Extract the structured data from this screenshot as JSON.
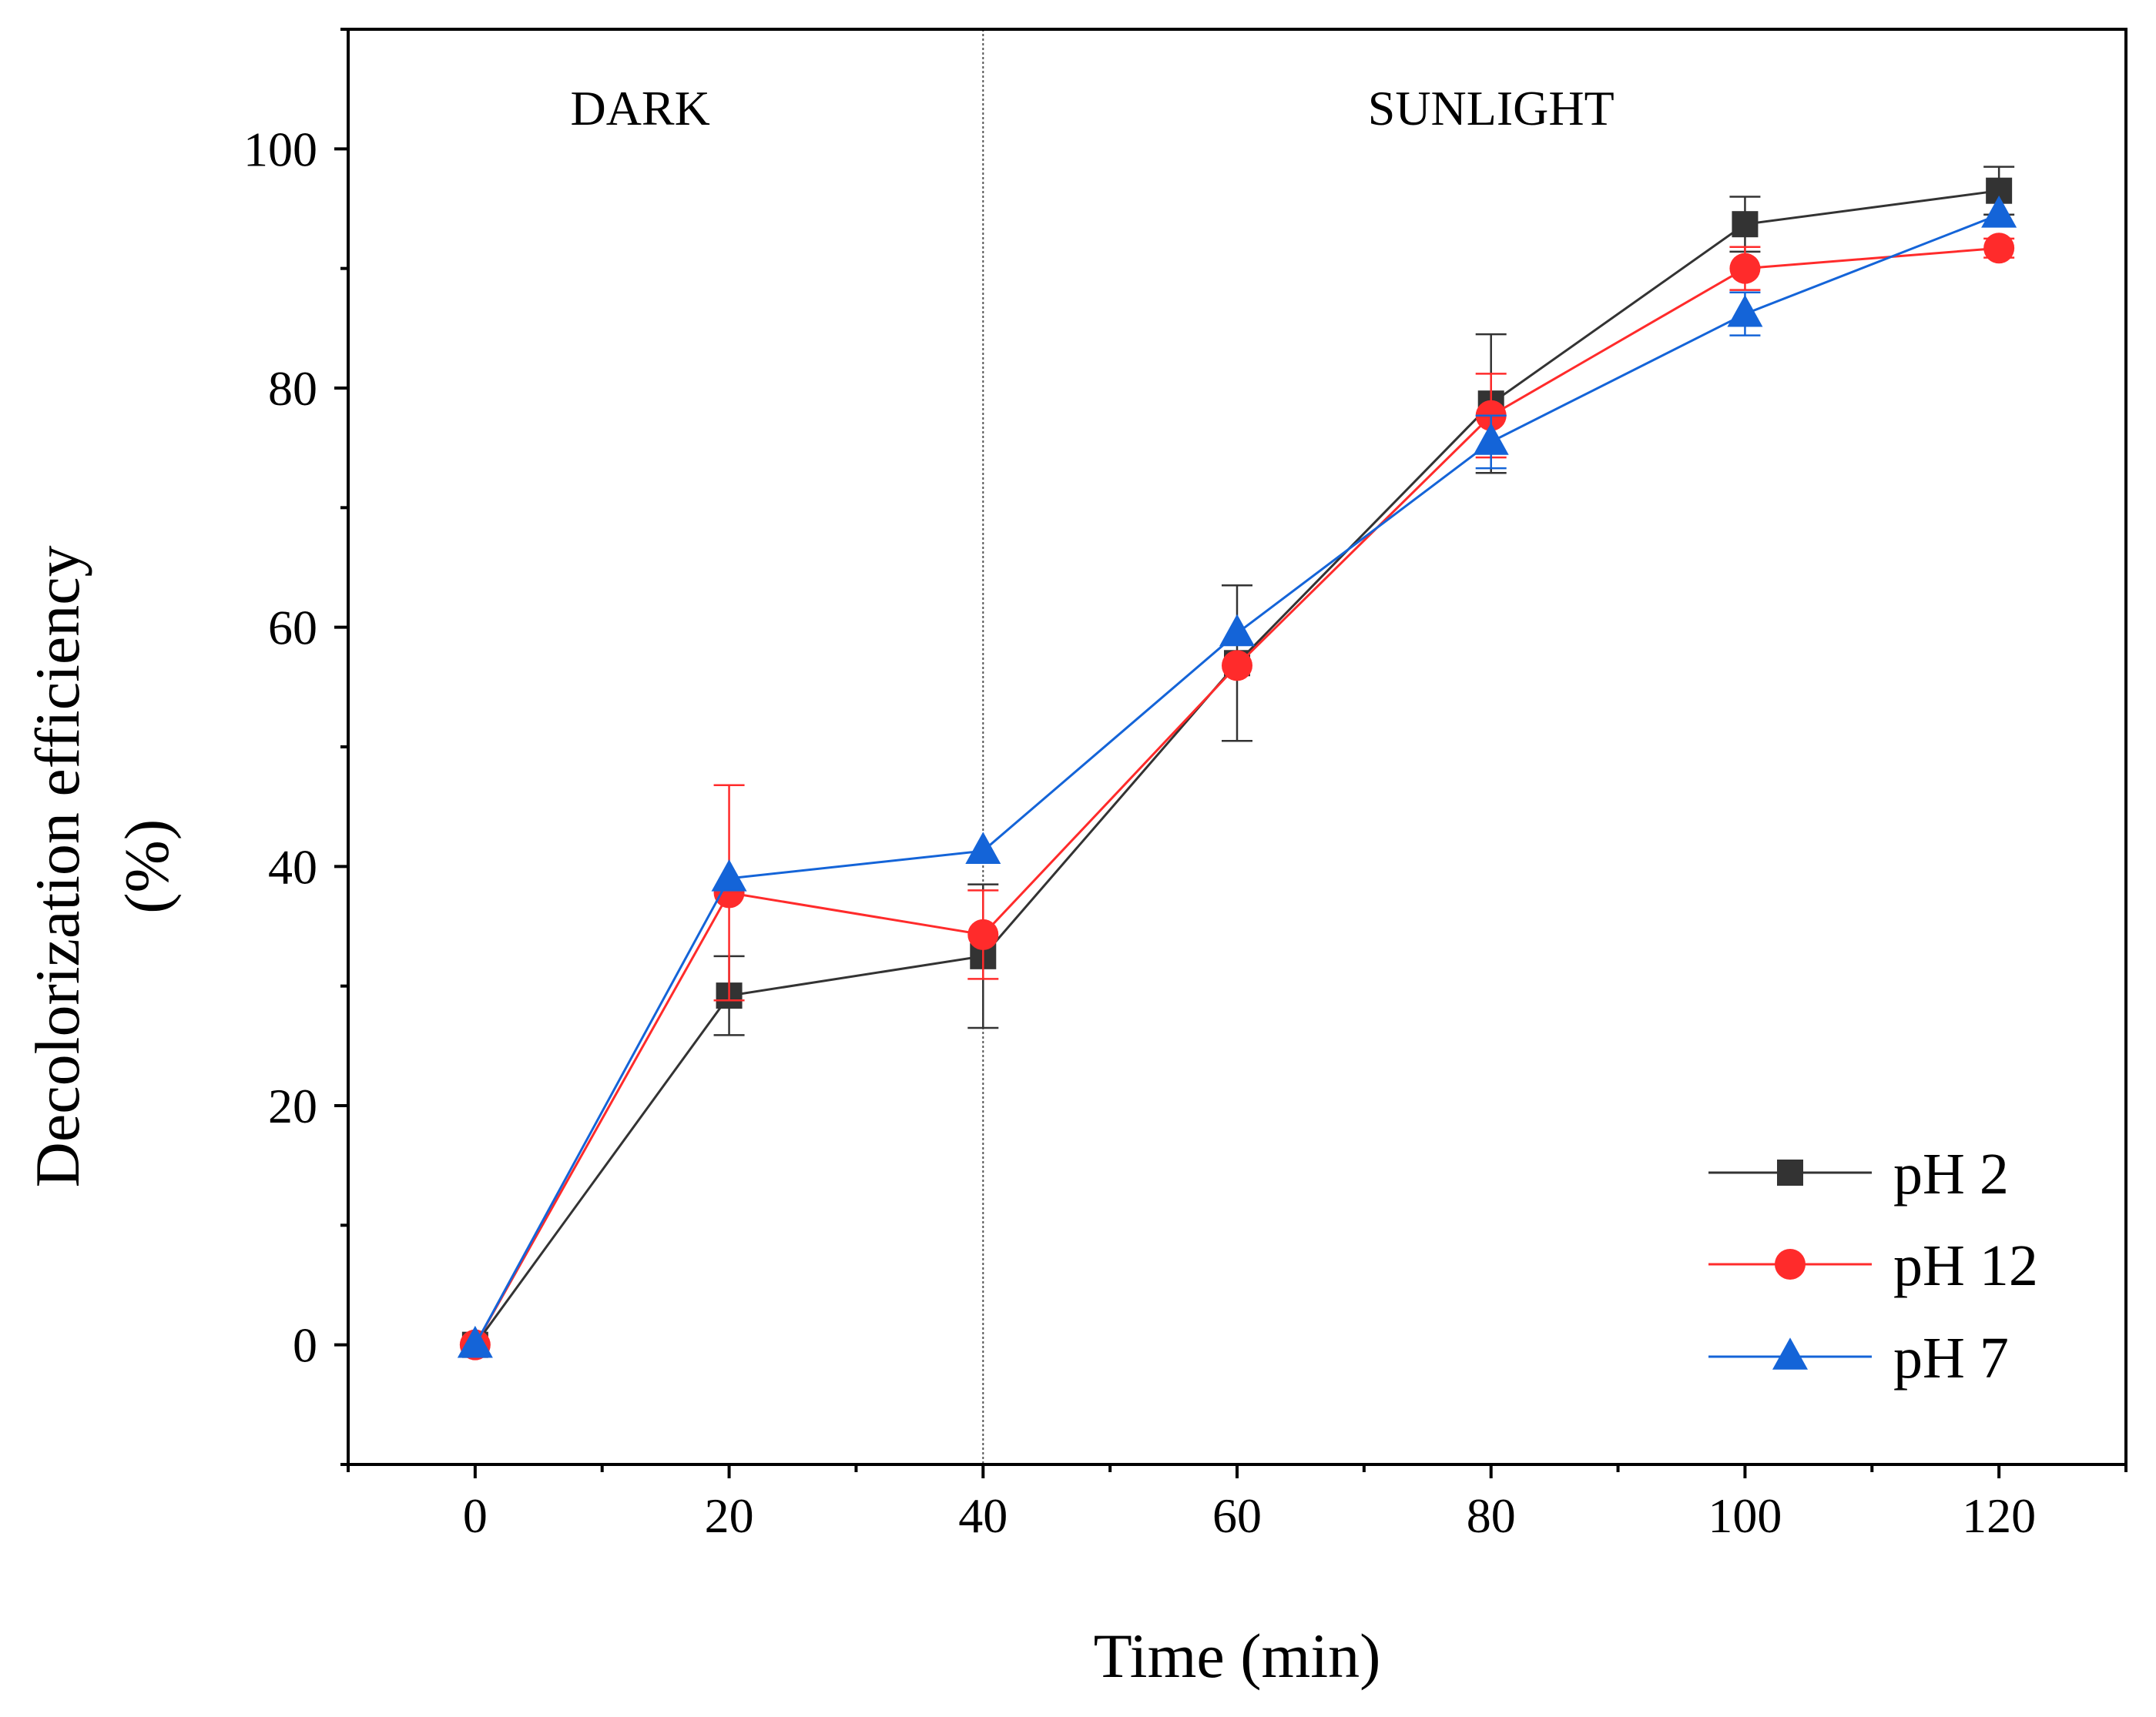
{
  "chart_data": {
    "type": "line",
    "xlabel": "Time (min)",
    "ylabel_line1": "Decolorization efficiency",
    "ylabel_line2": "(%)",
    "xlim": [
      -10,
      130
    ],
    "ylim": [
      -10,
      110
    ],
    "xticks": [
      0,
      20,
      40,
      60,
      80,
      100,
      120
    ],
    "yticks": [
      0,
      20,
      40,
      60,
      80,
      100
    ],
    "grid": false,
    "legend_position": "bottom-right",
    "divider_x": 40,
    "regions": [
      {
        "label": "DARK",
        "x": 13
      },
      {
        "label": "SUNLIGHT",
        "x": 80
      }
    ],
    "series": [
      {
        "name": "pH 2",
        "color": "#333333",
        "marker": "square",
        "x": [
          0,
          20,
          40,
          60,
          80,
          100,
          120
        ],
        "values": [
          0,
          29.2,
          32.5,
          57,
          78.7,
          93.7,
          96.5
        ],
        "errors": [
          0,
          3.3,
          6,
          6.5,
          5.8,
          2.3,
          2
        ]
      },
      {
        "name": "pH 12",
        "color": "#ff2b2b",
        "marker": "circle",
        "x": [
          0,
          20,
          40,
          60,
          80,
          100,
          120
        ],
        "values": [
          0,
          37.8,
          34.3,
          56.8,
          77.7,
          90,
          91.7
        ],
        "errors": [
          0,
          9,
          3.7,
          0,
          3.5,
          1.8,
          0.8
        ]
      },
      {
        "name": "pH 7",
        "color": "#1464d8",
        "marker": "triangle",
        "x": [
          0,
          20,
          40,
          60,
          80,
          100,
          120
        ],
        "values": [
          0,
          39,
          41.3,
          59.5,
          75.5,
          86.2,
          94.5
        ],
        "errors": [
          0,
          0,
          0,
          0,
          2.2,
          1.8,
          0
        ]
      }
    ]
  }
}
